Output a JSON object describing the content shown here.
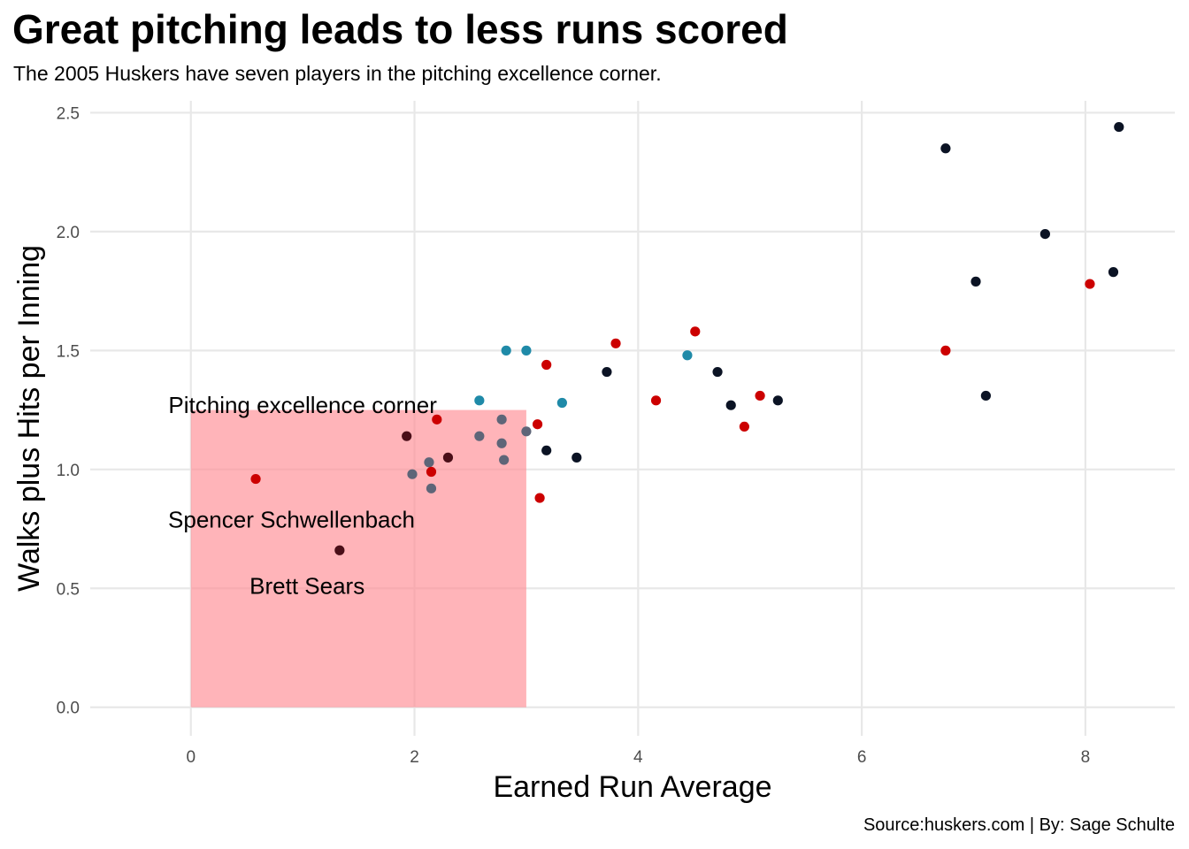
{
  "header": {
    "title": "Great pitching leads to less runs scored",
    "subtitle": "The 2005 Huskers have seven players in the pitching excellence corner."
  },
  "caption": "Source:huskers.com | By: Sage Schulte",
  "chart_data": {
    "type": "scatter",
    "xlabel": "Earned Run Average",
    "ylabel": "Walks plus Hits per Inning",
    "xlim": [
      -0.9,
      8.8
    ],
    "ylim": [
      -0.12,
      2.55
    ],
    "x_ticks": [
      "0",
      "2",
      "4",
      "6",
      "8"
    ],
    "y_ticks": [
      "0.0",
      "0.5",
      "1.0",
      "1.5",
      "2.0",
      "2.5"
    ],
    "grid": true,
    "highlight_region": {
      "x": [
        0,
        3
      ],
      "y": [
        0,
        1.25
      ],
      "color": "#ff8c94"
    },
    "annotations": [
      {
        "text": "Pitching excellence corner",
        "x": 1.0,
        "y": 1.27
      },
      {
        "text": "Spencer Schwellenbach",
        "x": 0.9,
        "y": 0.79
      },
      {
        "text": "Brett Sears",
        "x": 1.04,
        "y": 0.51
      }
    ],
    "colors": {
      "red": "#cc0000",
      "navy": "#0b1324",
      "teal": "#1f8aa8",
      "maroon": "#4a0e18"
    },
    "points": [
      {
        "x": 0.58,
        "y": 0.96,
        "color": "#cc0000"
      },
      {
        "x": 1.33,
        "y": 0.66,
        "color": "#4a0e18"
      },
      {
        "x": 1.93,
        "y": 1.14,
        "color": "#4a0e18"
      },
      {
        "x": 1.98,
        "y": 0.98,
        "color": "#5e6578"
      },
      {
        "x": 2.13,
        "y": 1.03,
        "color": "#5e6578"
      },
      {
        "x": 2.15,
        "y": 0.92,
        "color": "#5e6578"
      },
      {
        "x": 2.15,
        "y": 0.99,
        "color": "#cc0000"
      },
      {
        "x": 2.2,
        "y": 1.21,
        "color": "#cc0000"
      },
      {
        "x": 2.3,
        "y": 1.05,
        "color": "#4a0e18"
      },
      {
        "x": 2.58,
        "y": 1.29,
        "color": "#1f8aa8"
      },
      {
        "x": 2.58,
        "y": 1.14,
        "color": "#5e6578"
      },
      {
        "x": 2.78,
        "y": 1.21,
        "color": "#5e6578"
      },
      {
        "x": 2.78,
        "y": 1.11,
        "color": "#5e6578"
      },
      {
        "x": 2.8,
        "y": 1.04,
        "color": "#5e6578"
      },
      {
        "x": 2.82,
        "y": 1.5,
        "color": "#1f8aa8"
      },
      {
        "x": 3.0,
        "y": 1.5,
        "color": "#1f8aa8"
      },
      {
        "x": 3.0,
        "y": 1.16,
        "color": "#5e6578"
      },
      {
        "x": 3.1,
        "y": 1.19,
        "color": "#cc0000"
      },
      {
        "x": 3.12,
        "y": 0.88,
        "color": "#cc0000"
      },
      {
        "x": 3.18,
        "y": 1.08,
        "color": "#0b1324"
      },
      {
        "x": 3.18,
        "y": 1.44,
        "color": "#cc0000"
      },
      {
        "x": 3.32,
        "y": 1.28,
        "color": "#1f8aa8"
      },
      {
        "x": 3.45,
        "y": 1.05,
        "color": "#0b1324"
      },
      {
        "x": 3.72,
        "y": 1.41,
        "color": "#0b1324"
      },
      {
        "x": 3.8,
        "y": 1.53,
        "color": "#cc0000"
      },
      {
        "x": 4.16,
        "y": 1.29,
        "color": "#cc0000"
      },
      {
        "x": 4.44,
        "y": 1.48,
        "color": "#1f8aa8"
      },
      {
        "x": 4.51,
        "y": 1.58,
        "color": "#cc0000"
      },
      {
        "x": 4.71,
        "y": 1.41,
        "color": "#0b1324"
      },
      {
        "x": 4.83,
        "y": 1.27,
        "color": "#0b1324"
      },
      {
        "x": 4.95,
        "y": 1.18,
        "color": "#cc0000"
      },
      {
        "x": 5.09,
        "y": 1.31,
        "color": "#cc0000"
      },
      {
        "x": 5.25,
        "y": 1.29,
        "color": "#0b1324"
      },
      {
        "x": 6.75,
        "y": 2.35,
        "color": "#0b1324"
      },
      {
        "x": 6.75,
        "y": 1.5,
        "color": "#cc0000"
      },
      {
        "x": 7.02,
        "y": 1.79,
        "color": "#0b1324"
      },
      {
        "x": 7.11,
        "y": 1.31,
        "color": "#0b1324"
      },
      {
        "x": 7.64,
        "y": 1.99,
        "color": "#0b1324"
      },
      {
        "x": 8.04,
        "y": 1.78,
        "color": "#cc0000"
      },
      {
        "x": 8.25,
        "y": 1.83,
        "color": "#0b1324"
      },
      {
        "x": 8.3,
        "y": 2.44,
        "color": "#0b1324"
      }
    ]
  }
}
